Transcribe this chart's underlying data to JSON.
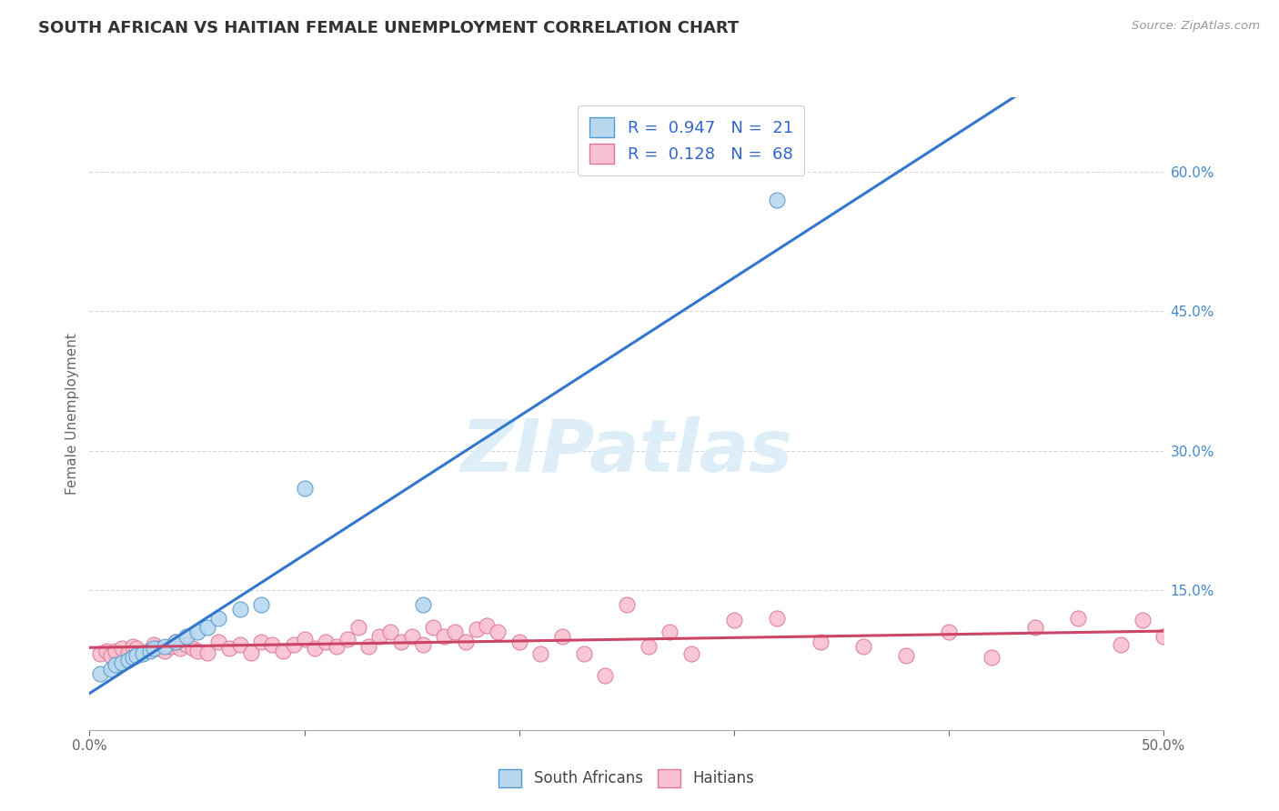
{
  "title": "SOUTH AFRICAN VS HAITIAN FEMALE UNEMPLOYMENT CORRELATION CHART",
  "source_text": "Source: ZipAtlas.com",
  "ylabel": "Female Unemployment",
  "xlim": [
    0.0,
    0.5
  ],
  "ylim": [
    0.0,
    0.68
  ],
  "x_ticks": [
    0.0,
    0.1,
    0.2,
    0.3,
    0.4,
    0.5
  ],
  "x_tick_labels": [
    "0.0%",
    "",
    "",
    "",
    "",
    "50.0%"
  ],
  "y_ticks": [
    0.15,
    0.3,
    0.45,
    0.6
  ],
  "y_tick_labels": [
    "15.0%",
    "30.0%",
    "45.0%",
    "60.0%"
  ],
  "title_color": "#333333",
  "title_fontsize": 13,
  "background_color": "#ffffff",
  "grid_color": "#cccccc",
  "legend_r1_val": "0.947",
  "legend_n1_val": "21",
  "legend_r2_val": "0.128",
  "legend_n2_val": "68",
  "legend_color1": "#b8d8f0",
  "legend_color2": "#f8c0d0",
  "dot_color1": "#b8d8f0",
  "dot_color2": "#f8c0d0",
  "dot_edge1": "#5599cc",
  "dot_edge2": "#dd7799",
  "line_color1": "#3377cc",
  "line_color2": "#cc4466",
  "watermark": "ZIPatlas",
  "watermark_color": "#ddeef8",
  "south_african_x": [
    0.005,
    0.01,
    0.012,
    0.015,
    0.018,
    0.02,
    0.022,
    0.025,
    0.028,
    0.03,
    0.035,
    0.04,
    0.045,
    0.05,
    0.055,
    0.06,
    0.07,
    0.08,
    0.1,
    0.155,
    0.32
  ],
  "south_african_y": [
    0.06,
    0.065,
    0.07,
    0.072,
    0.075,
    0.078,
    0.08,
    0.082,
    0.085,
    0.088,
    0.09,
    0.095,
    0.1,
    0.105,
    0.11,
    0.12,
    0.13,
    0.135,
    0.26,
    0.135,
    0.57
  ],
  "haitian_x": [
    0.005,
    0.008,
    0.01,
    0.012,
    0.015,
    0.018,
    0.02,
    0.022,
    0.025,
    0.028,
    0.03,
    0.032,
    0.035,
    0.038,
    0.04,
    0.042,
    0.045,
    0.048,
    0.05,
    0.055,
    0.06,
    0.065,
    0.07,
    0.075,
    0.08,
    0.085,
    0.09,
    0.095,
    0.1,
    0.105,
    0.11,
    0.115,
    0.12,
    0.125,
    0.13,
    0.135,
    0.14,
    0.145,
    0.15,
    0.155,
    0.16,
    0.165,
    0.17,
    0.175,
    0.18,
    0.185,
    0.19,
    0.2,
    0.21,
    0.22,
    0.23,
    0.24,
    0.25,
    0.26,
    0.27,
    0.28,
    0.3,
    0.32,
    0.34,
    0.36,
    0.38,
    0.4,
    0.42,
    0.44,
    0.46,
    0.48,
    0.49,
    0.5
  ],
  "haitian_y": [
    0.082,
    0.085,
    0.08,
    0.085,
    0.088,
    0.083,
    0.09,
    0.088,
    0.083,
    0.086,
    0.092,
    0.088,
    0.085,
    0.09,
    0.095,
    0.088,
    0.092,
    0.088,
    0.085,
    0.083,
    0.095,
    0.088,
    0.092,
    0.083,
    0.095,
    0.092,
    0.085,
    0.092,
    0.098,
    0.088,
    0.095,
    0.09,
    0.098,
    0.11,
    0.09,
    0.1,
    0.105,
    0.095,
    0.1,
    0.092,
    0.11,
    0.1,
    0.105,
    0.095,
    0.108,
    0.112,
    0.105,
    0.095,
    0.082,
    0.1,
    0.082,
    0.058,
    0.135,
    0.09,
    0.105,
    0.082,
    0.118,
    0.12,
    0.095,
    0.09,
    0.08,
    0.105,
    0.078,
    0.11,
    0.12,
    0.092,
    0.118,
    0.1
  ],
  "label_south": "South Africans",
  "label_haitian": "Haitians"
}
